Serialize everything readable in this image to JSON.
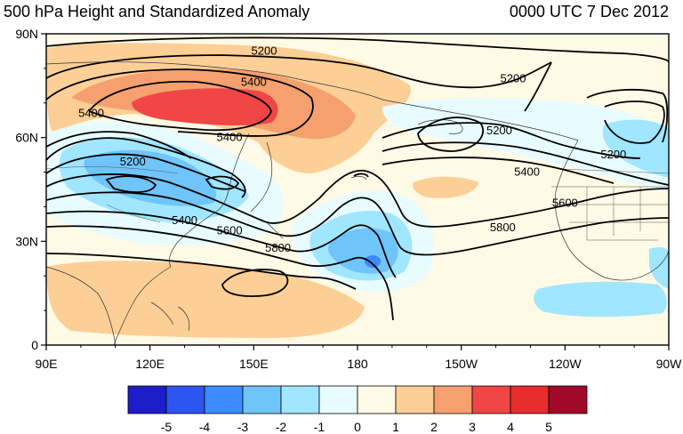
{
  "title": "500 hPa Height and Standardized Anomaly",
  "datetime": "0000 UTC 7 Dec 2012",
  "map": {
    "lat_ticks": [
      "90N",
      "60N",
      "30N",
      "0"
    ],
    "lon_ticks": [
      "90E",
      "120E",
      "150E",
      "180",
      "150W",
      "120W",
      "90W"
    ],
    "lat_range": [
      0,
      90
    ],
    "lon_range_east": [
      90,
      270
    ],
    "contour_labels": [
      {
        "text": "5200",
        "lon": 153,
        "lat": 85
      },
      {
        "text": "5200",
        "lon": 225,
        "lat": 77
      },
      {
        "text": "5400",
        "lon": 150,
        "lat": 76
      },
      {
        "text": "5400",
        "lon": 103,
        "lat": 67
      },
      {
        "text": "5400",
        "lon": 143,
        "lat": 60
      },
      {
        "text": "5200",
        "lon": 115,
        "lat": 53
      },
      {
        "text": "5200",
        "lon": 221,
        "lat": 62
      },
      {
        "text": "5200",
        "lon": 254,
        "lat": 55
      },
      {
        "text": "5400",
        "lon": 229,
        "lat": 50
      },
      {
        "text": "5600",
        "lon": 240,
        "lat": 41
      },
      {
        "text": "5400",
        "lon": 130,
        "lat": 36
      },
      {
        "text": "5600",
        "lon": 143,
        "lat": 33
      },
      {
        "text": "5800",
        "lon": 157,
        "lat": 28
      },
      {
        "text": "5800",
        "lon": 222,
        "lat": 34
      }
    ]
  },
  "colorbar": {
    "labels": [
      "-5",
      "-4",
      "-3",
      "-2",
      "-1",
      "0",
      "1",
      "2",
      "3",
      "4",
      "5"
    ],
    "colors": [
      "#1e1ec8",
      "#2d55f0",
      "#3c8cff",
      "#6fc4fa",
      "#a0e6ff",
      "#e8fcff",
      "#fffae6",
      "#fccf96",
      "#f5a06e",
      "#f04646",
      "#e82d2d",
      "#a00a28"
    ]
  }
}
